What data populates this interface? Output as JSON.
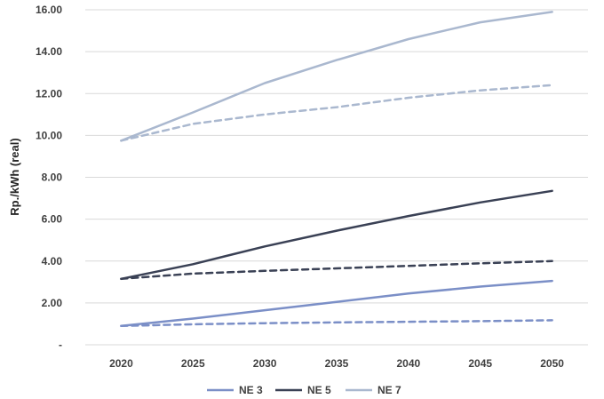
{
  "chart_data": {
    "type": "line",
    "ylabel": "Rp./kWh (real)",
    "x": [
      2020,
      2025,
      2030,
      2035,
      2040,
      2045,
      2050
    ],
    "ylim": [
      0,
      16
    ],
    "yticks": [
      "-",
      "2.00",
      "4.00",
      "6.00",
      "8.00",
      "10.00",
      "12.00",
      "14.00",
      "16.00"
    ],
    "ytick_values": [
      0,
      2,
      4,
      6,
      8,
      10,
      12,
      14,
      16
    ],
    "legend_position": "bottom",
    "grid": "horizontal",
    "series": [
      {
        "name": "NE 3",
        "color": "#7b8fc7",
        "style": "solid",
        "in_legend": true,
        "values": [
          0.9,
          1.25,
          1.65,
          2.05,
          2.45,
          2.78,
          3.05
        ]
      },
      {
        "name": "",
        "color": "#7b8fc7",
        "style": "dashed",
        "in_legend": false,
        "values": [
          0.9,
          0.98,
          1.03,
          1.07,
          1.1,
          1.13,
          1.17
        ]
      },
      {
        "name": "NE 5",
        "color": "#3a4155",
        "style": "solid",
        "in_legend": true,
        "values": [
          3.15,
          3.85,
          4.7,
          5.45,
          6.15,
          6.8,
          7.35
        ]
      },
      {
        "name": "",
        "color": "#3a4155",
        "style": "dashed",
        "in_legend": false,
        "values": [
          3.15,
          3.4,
          3.53,
          3.65,
          3.77,
          3.89,
          4.0
        ]
      },
      {
        "name": "NE 7",
        "color": "#aab8cf",
        "style": "solid",
        "in_legend": true,
        "values": [
          9.75,
          11.1,
          12.5,
          13.6,
          14.6,
          15.4,
          15.9
        ]
      },
      {
        "name": "",
        "color": "#aab8cf",
        "style": "dashed",
        "in_legend": false,
        "values": [
          9.75,
          10.55,
          11.0,
          11.35,
          11.8,
          12.15,
          12.4
        ]
      }
    ]
  }
}
